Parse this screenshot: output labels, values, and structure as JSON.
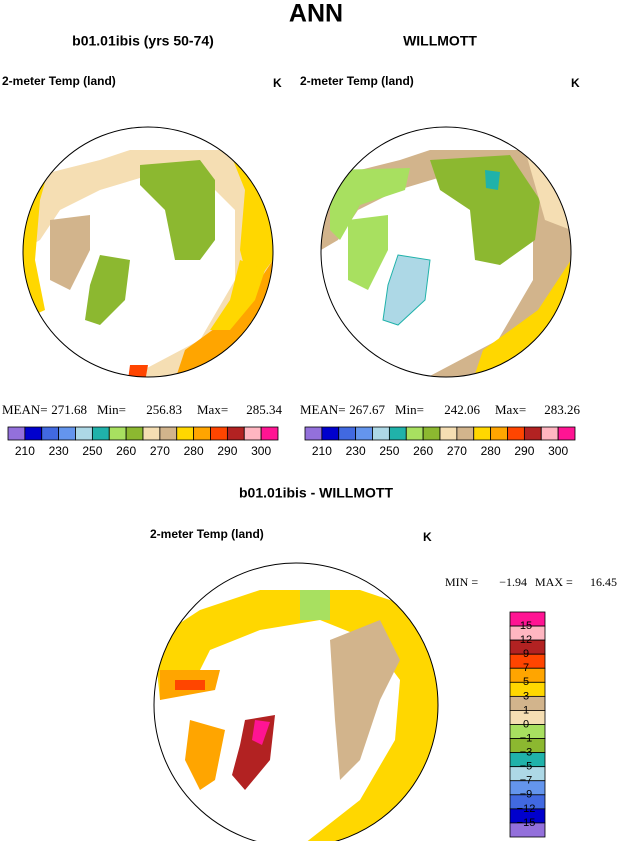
{
  "title": "ANN",
  "panels": [
    {
      "title": "b01.01ibis (yrs 50-74)",
      "variable": "2-meter Temp (land)",
      "units": "K",
      "stats": [
        {
          "label": "MEAN=",
          "value": "271.68"
        },
        {
          "label": "Min=",
          "value": "256.83"
        },
        {
          "label": "Max=",
          "value": "285.34"
        }
      ]
    },
    {
      "title": "WILLMOTT",
      "variable": "2-meter Temp (land)",
      "units": "K",
      "stats": [
        {
          "label": "MEAN=",
          "value": "267.67"
        },
        {
          "label": "Min=",
          "value": "242.06"
        },
        {
          "label": "Max=",
          "value": "283.26"
        }
      ]
    }
  ],
  "colorbar_top": {
    "colors": [
      "#9370db",
      "#0000cd",
      "#4169e1",
      "#6495ed",
      "#add8e6",
      "#20b2aa",
      "#a8e060",
      "#8cb830",
      "#f5deb3",
      "#d2b48c",
      "#ffd700",
      "#ffa500",
      "#ff4500",
      "#b22222",
      "#ffb6c1",
      "#ff1493"
    ],
    "labels": [
      "210",
      "230",
      "250",
      "260",
      "270",
      "280",
      "290",
      "300"
    ]
  },
  "diff_panel": {
    "title": "b01.01ibis - WILLMOTT",
    "variable": "2-meter Temp (land)",
    "units": "K",
    "stats": [
      {
        "label": "MIN =",
        "value": "−1.94"
      },
      {
        "label": "MAX =",
        "value": "16.45"
      }
    ]
  },
  "colorbar_bottom": {
    "colors": [
      "#ff1493",
      "#ffb6c1",
      "#b22222",
      "#ff4500",
      "#ffa500",
      "#ffd700",
      "#d2b48c",
      "#f5deb3",
      "#a8e060",
      "#8cb830",
      "#20b2aa",
      "#add8e6",
      "#6495ed",
      "#4169e1",
      "#0000cd",
      "#9370db"
    ],
    "labels": [
      "15",
      "12",
      "9",
      "7",
      "5",
      "3",
      "1",
      "0",
      "−1",
      "−3",
      "−5",
      "−7",
      "−9",
      "−12",
      "−15"
    ]
  }
}
